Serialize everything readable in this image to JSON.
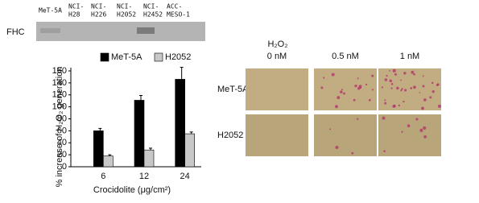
{
  "blot": {
    "row_label": "FHC",
    "columns": [
      [
        "MeT-5A"
      ],
      [
        "NCI-",
        "H28"
      ],
      [
        "NCI-",
        "H226"
      ],
      [
        "NCI-",
        "H2052"
      ],
      [
        "NCI-",
        "H2452"
      ],
      [
        "ACC-",
        "MESO-1"
      ]
    ]
  },
  "chart_data": {
    "type": "bar",
    "ylabel": "% increase of H₂O₂ generation",
    "xlabel": "Crocidolite (μg/cm²)",
    "categories": [
      "6",
      "12",
      "24"
    ],
    "series": [
      {
        "name": "MeT-5A",
        "color": "#000000",
        "values": [
          60,
          111,
          146
        ],
        "errors": [
          4,
          8,
          20
        ]
      },
      {
        "name": "H2052",
        "color": "#c8c8c8",
        "values": [
          18,
          28,
          55
        ],
        "errors": [
          2,
          3,
          3
        ]
      }
    ],
    "ylim": [
      0,
      160
    ],
    "yticks": [
      0,
      20,
      40,
      60,
      80,
      100,
      120,
      140,
      160
    ],
    "legend": "top"
  },
  "micrographs": {
    "header": "H₂O₂",
    "columns": [
      "0 nM",
      "0.5 nM",
      "1 nM"
    ],
    "rows": [
      "MeT-5A",
      "H2052"
    ]
  }
}
